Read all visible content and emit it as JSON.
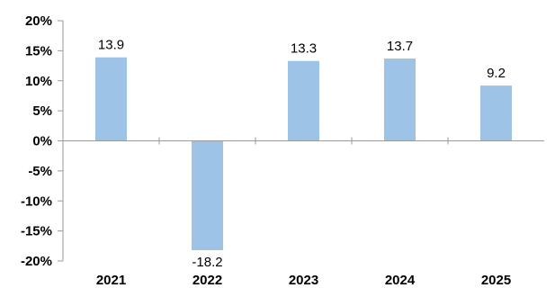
{
  "chart_data": {
    "type": "bar",
    "categories": [
      "2021",
      "2022",
      "2023",
      "2024",
      "2025"
    ],
    "values": [
      13.9,
      -18.2,
      13.3,
      13.7,
      9.2
    ],
    "data_labels": [
      "13.9",
      "-18.2",
      "13.3",
      "13.7",
      "9.2"
    ],
    "title": "",
    "xlabel": "",
    "ylabel": "",
    "ylim": [
      -20,
      20
    ],
    "yticks": [
      20,
      15,
      10,
      5,
      0,
      -5,
      -10,
      -15,
      -20
    ],
    "ytick_labels": [
      "20%",
      "15%",
      "10%",
      "5%",
      "0%",
      "-5%",
      "-10%",
      "-15%",
      "-20%"
    ],
    "grid": false,
    "legend": "none",
    "bar_color": "#9dc3e6"
  }
}
